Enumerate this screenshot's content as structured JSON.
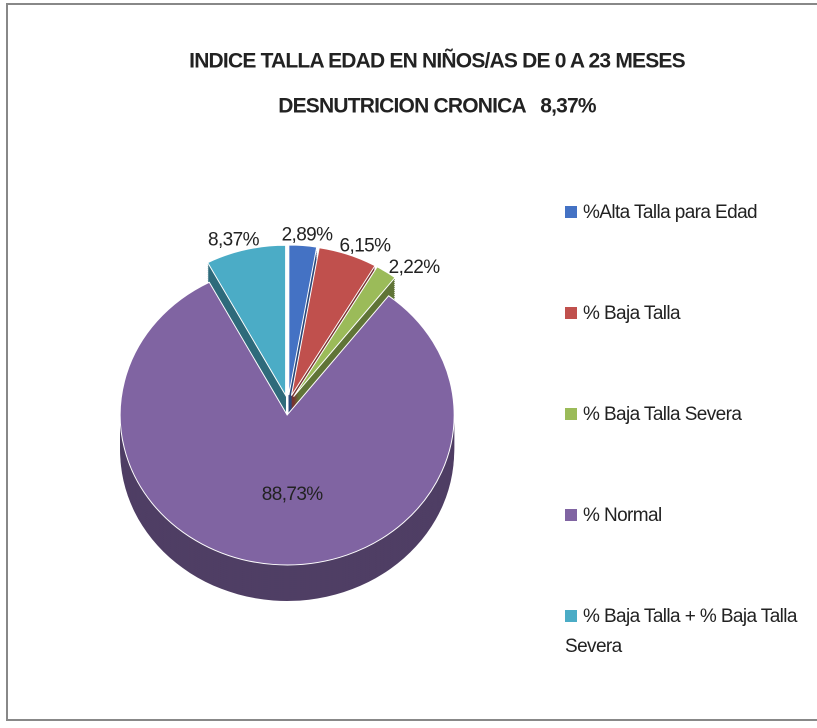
{
  "chart_data": {
    "type": "pie3d",
    "title": "INDICE TALLA EDAD EN NIÑOS/AS DE 0 A 23 MESES",
    "subtitle": "DESNUTRICION CRONICA   8,37%",
    "categories": [
      "%Alta Talla para Edad",
      "% Baja Talla",
      "% Baja Talla Severa",
      "% Normal",
      "% Baja Talla + % Baja Talla Severa"
    ],
    "values": [
      2.89,
      6.15,
      2.22,
      88.73,
      8.37
    ],
    "value_labels": [
      "2,89%",
      "6,15%",
      "2,22%",
      "88,73%",
      "8,37%"
    ],
    "colors": [
      "#4472c4",
      "#c0504d",
      "#9bbb59",
      "#8064a2",
      "#4bacc6"
    ],
    "legend": "right"
  }
}
